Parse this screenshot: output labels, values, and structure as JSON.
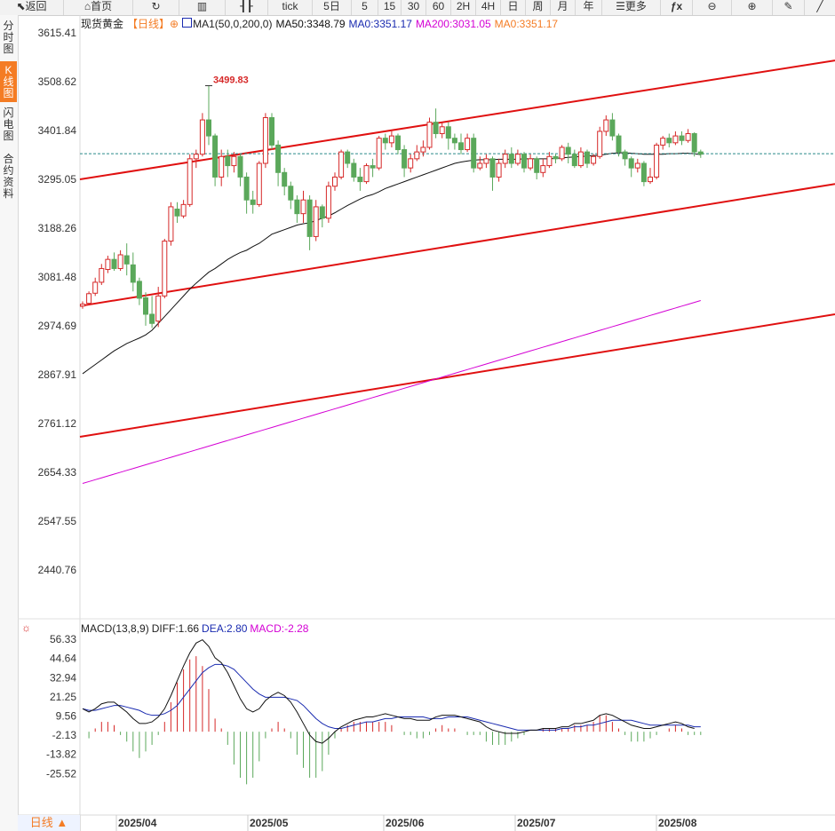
{
  "toolbar": {
    "back": "返回",
    "home": "首页",
    "periods": [
      "tick",
      "5日",
      "5",
      "15",
      "30",
      "60",
      "2H",
      "4H",
      "日",
      "周",
      "月",
      "年"
    ],
    "more": "更多"
  },
  "sidebar": [
    {
      "label": "分时图",
      "active": false
    },
    {
      "label": "K线图",
      "active": true
    },
    {
      "label": "闪电图",
      "active": false
    },
    {
      "label": "合约资料",
      "active": false
    }
  ],
  "legend": {
    "symbol": "现货黄金",
    "period": "【日线】",
    "ma_label": "MA1(50,0,200,0)",
    "ma50": "MA50:3348.79",
    "ma0a": "MA0:3351.17",
    "ma200": "MA200:3031.05",
    "ma0b": "MA0:3351.17"
  },
  "macd_legend": {
    "name": "MACD(13,8,9)",
    "diff": "DIFF:1.66",
    "dea": "DEA:2.80",
    "macd": "MACD:-2.28"
  },
  "bottom_tab": "日线 ▲",
  "colors": {
    "up": "#d62828",
    "down": "#5ba85b",
    "trend": "#e01010",
    "ma50": "#111111",
    "ma200": "#d400d4",
    "ma0": "#f47c24",
    "diff": "#111111",
    "dea": "#1a2bb0",
    "price_line": "#2a8a8a"
  },
  "chart_data": {
    "type": "candlestick",
    "price_axis": {
      "ticks": [
        "3615.41",
        "3508.62",
        "3401.84",
        "3295.05",
        "3188.26",
        "3081.48",
        "2974.69",
        "2867.91",
        "2761.12",
        "2654.33",
        "2547.55",
        "2440.76"
      ],
      "ylim": [
        2440.76,
        3615.41
      ]
    },
    "x_ticks": [
      "2025/04",
      "2025/05",
      "2025/06",
      "2025/07",
      "2025/08"
    ],
    "high_annotation": "3499.83",
    "candles": [
      [
        3018,
        3022,
        3012,
        3028
      ],
      [
        3024,
        3045,
        3020,
        3050
      ],
      [
        3046,
        3070,
        3040,
        3080
      ],
      [
        3070,
        3100,
        3064,
        3110
      ],
      [
        3098,
        3120,
        3090,
        3128
      ],
      [
        3120,
        3100,
        3095,
        3135
      ],
      [
        3100,
        3130,
        3095,
        3140
      ],
      [
        3128,
        3110,
        3085,
        3155
      ],
      [
        3108,
        3070,
        3050,
        3135
      ],
      [
        3072,
        3035,
        3020,
        3080
      ],
      [
        3036,
        3000,
        2975,
        3048
      ],
      [
        3000,
        2980,
        2970,
        3040
      ],
      [
        2985,
        3040,
        2972,
        3060
      ],
      [
        3040,
        3160,
        3035,
        3165
      ],
      [
        3160,
        3235,
        3150,
        3245
      ],
      [
        3230,
        3215,
        3200,
        3245
      ],
      [
        3215,
        3240,
        3210,
        3250
      ],
      [
        3240,
        3340,
        3235,
        3350
      ],
      [
        3340,
        3350,
        3320,
        3360
      ],
      [
        3350,
        3425,
        3345,
        3440
      ],
      [
        3425,
        3390,
        3370,
        3499.83
      ],
      [
        3390,
        3300,
        3280,
        3395
      ],
      [
        3300,
        3345,
        3280,
        3360
      ],
      [
        3345,
        3325,
        3300,
        3360
      ],
      [
        3325,
        3345,
        3310,
        3355
      ],
      [
        3345,
        3300,
        3280,
        3350
      ],
      [
        3300,
        3250,
        3220,
        3310
      ],
      [
        3250,
        3240,
        3220,
        3270
      ],
      [
        3240,
        3330,
        3235,
        3335
      ],
      [
        3330,
        3430,
        3320,
        3440
      ],
      [
        3430,
        3370,
        3360,
        3440
      ],
      [
        3370,
        3310,
        3280,
        3380
      ],
      [
        3310,
        3280,
        3260,
        3320
      ],
      [
        3280,
        3250,
        3230,
        3290
      ],
      [
        3250,
        3220,
        3200,
        3260
      ],
      [
        3220,
        3250,
        3200,
        3270
      ],
      [
        3250,
        3170,
        3140,
        3260
      ],
      [
        3170,
        3235,
        3160,
        3250
      ],
      [
        3235,
        3210,
        3190,
        3240
      ],
      [
        3210,
        3280,
        3200,
        3290
      ],
      [
        3280,
        3300,
        3270,
        3310
      ],
      [
        3300,
        3355,
        3295,
        3360
      ],
      [
        3355,
        3330,
        3320,
        3360
      ],
      [
        3330,
        3300,
        3290,
        3340
      ],
      [
        3300,
        3290,
        3270,
        3320
      ],
      [
        3290,
        3325,
        3285,
        3330
      ],
      [
        3325,
        3320,
        3300,
        3340
      ],
      [
        3320,
        3385,
        3315,
        3390
      ],
      [
        3385,
        3375,
        3360,
        3395
      ],
      [
        3375,
        3390,
        3365,
        3400
      ],
      [
        3390,
        3360,
        3350,
        3395
      ],
      [
        3360,
        3320,
        3300,
        3370
      ],
      [
        3320,
        3340,
        3310,
        3350
      ],
      [
        3340,
        3355,
        3335,
        3370
      ],
      [
        3355,
        3365,
        3345,
        3380
      ],
      [
        3365,
        3420,
        3360,
        3430
      ],
      [
        3420,
        3395,
        3385,
        3450
      ],
      [
        3395,
        3410,
        3385,
        3420
      ],
      [
        3410,
        3385,
        3360,
        3420
      ],
      [
        3385,
        3375,
        3360,
        3395
      ],
      [
        3375,
        3360,
        3350,
        3395
      ],
      [
        3360,
        3385,
        3355,
        3395
      ],
      [
        3385,
        3320,
        3310,
        3395
      ],
      [
        3320,
        3330,
        3315,
        3345
      ],
      [
        3330,
        3340,
        3320,
        3350
      ],
      [
        3340,
        3300,
        3270,
        3345
      ],
      [
        3300,
        3330,
        3290,
        3340
      ],
      [
        3330,
        3350,
        3320,
        3360
      ],
      [
        3350,
        3330,
        3320,
        3365
      ],
      [
        3330,
        3350,
        3325,
        3360
      ],
      [
        3350,
        3320,
        3310,
        3355
      ],
      [
        3320,
        3340,
        3315,
        3350
      ],
      [
        3340,
        3310,
        3295,
        3345
      ],
      [
        3310,
        3325,
        3300,
        3340
      ],
      [
        3325,
        3345,
        3320,
        3355
      ],
      [
        3345,
        3340,
        3330,
        3350
      ],
      [
        3340,
        3365,
        3335,
        3370
      ],
      [
        3365,
        3350,
        3330,
        3375
      ],
      [
        3350,
        3325,
        3320,
        3360
      ],
      [
        3325,
        3355,
        3320,
        3365
      ],
      [
        3355,
        3330,
        3320,
        3360
      ],
      [
        3330,
        3345,
        3325,
        3350
      ],
      [
        3345,
        3400,
        3340,
        3410
      ],
      [
        3400,
        3425,
        3390,
        3435
      ],
      [
        3425,
        3390,
        3380,
        3440
      ],
      [
        3390,
        3355,
        3345,
        3395
      ],
      [
        3355,
        3340,
        3325,
        3360
      ],
      [
        3340,
        3320,
        3300,
        3345
      ],
      [
        3320,
        3330,
        3310,
        3340
      ],
      [
        3330,
        3290,
        3280,
        3335
      ],
      [
        3290,
        3300,
        3285,
        3320
      ],
      [
        3300,
        3370,
        3295,
        3375
      ],
      [
        3370,
        3385,
        3360,
        3390
      ],
      [
        3385,
        3375,
        3365,
        3395
      ],
      [
        3375,
        3390,
        3370,
        3400
      ],
      [
        3390,
        3380,
        3370,
        3400
      ],
      [
        3380,
        3395,
        3375,
        3405
      ],
      [
        3395,
        3355,
        3345,
        3398
      ],
      [
        3355,
        3350,
        3342,
        3360
      ]
    ],
    "ma50": [
      2870,
      2880,
      2890,
      2900,
      2910,
      2920,
      2928,
      2936,
      2942,
      2948,
      2955,
      2965,
      2980,
      2995,
      3010,
      3025,
      3040,
      3055,
      3068,
      3080,
      3092,
      3100,
      3110,
      3120,
      3128,
      3135,
      3140,
      3148,
      3155,
      3165,
      3175,
      3180,
      3185,
      3190,
      3195,
      3198,
      3200,
      3205,
      3210,
      3215,
      3222,
      3230,
      3238,
      3245,
      3252,
      3258,
      3262,
      3268,
      3275,
      3280,
      3285,
      3290,
      3295,
      3300,
      3305,
      3310,
      3315,
      3320,
      3325,
      3330,
      3333,
      3335,
      3337,
      3338,
      3338,
      3338,
      3339,
      3339,
      3339,
      3339,
      3340,
      3340,
      3340,
      3340,
      3340,
      3341,
      3342,
      3343,
      3344,
      3345,
      3346,
      3347,
      3348,
      3350,
      3352,
      3353,
      3353,
      3352,
      3351,
      3350,
      3350,
      3350,
      3350,
      3351,
      3351,
      3352,
      3352,
      3351,
      3349
    ],
    "ma200": {
      "start": 2630,
      "end": 3030
    },
    "current_price": 3351.17,
    "trend_lines": [
      {
        "x0": 0,
        "y0": 3295,
        "x1": 120,
        "y1": 3555
      },
      {
        "x0": 0,
        "y0": 3018,
        "x1": 120,
        "y1": 3285
      },
      {
        "x0": 0,
        "y0": 2732,
        "x1": 120,
        "y1": 3000
      }
    ],
    "macd": {
      "yticks": [
        "56.33",
        "44.64",
        "32.94",
        "21.25",
        "9.56",
        "-2.13",
        "-13.82",
        "-25.52"
      ],
      "ylim": [
        -37.21,
        56.33
      ],
      "diff": [
        14,
        12,
        14,
        17,
        18,
        18,
        15,
        12,
        8,
        5,
        5,
        6,
        9,
        14,
        22,
        31,
        40,
        48,
        54,
        56,
        52,
        45,
        42,
        36,
        28,
        20,
        14,
        12,
        14,
        19,
        22,
        24,
        22,
        18,
        12,
        5,
        -2,
        -6,
        -7,
        -4,
        0,
        3,
        5,
        7,
        8,
        9,
        9,
        10,
        11,
        10,
        9,
        8,
        8,
        7,
        7,
        7,
        9,
        10,
        10,
        10,
        9,
        8,
        7,
        6,
        3,
        1,
        0,
        -1,
        -1,
        -1,
        0,
        1,
        1,
        2,
        2,
        2,
        3,
        3,
        5,
        5,
        6,
        7,
        10,
        11,
        10,
        8,
        6,
        4,
        3,
        2,
        2,
        3,
        4,
        5,
        6,
        5,
        3,
        2
      ],
      "dea": [
        14,
        13,
        13,
        14,
        15,
        16,
        16,
        15,
        14,
        13,
        11,
        10,
        10,
        11,
        13,
        16,
        21,
        26,
        31,
        36,
        39,
        41,
        41,
        40,
        38,
        34,
        30,
        26,
        23,
        21,
        21,
        21,
        21,
        20,
        19,
        16,
        12,
        8,
        5,
        3,
        2,
        2,
        3,
        4,
        5,
        6,
        6,
        7,
        8,
        8,
        9,
        9,
        9,
        9,
        9,
        8,
        8,
        8,
        9,
        9,
        9,
        9,
        8,
        7,
        6,
        5,
        4,
        3,
        2,
        1,
        1,
        1,
        1,
        1,
        1,
        1,
        2,
        2,
        3,
        3,
        4,
        4,
        5,
        6,
        7,
        7,
        7,
        7,
        6,
        5,
        4,
        4,
        4,
        4,
        4,
        4,
        4,
        3,
        3
      ],
      "macd_bars": [
        0,
        -2,
        1,
        3,
        3,
        2,
        -1,
        -3,
        -6,
        -8,
        -6,
        -4,
        -1,
        3,
        9,
        15,
        19,
        22,
        23,
        20,
        13,
        4,
        1,
        -4,
        -10,
        -14,
        -16,
        -14,
        -9,
        -2,
        1,
        3,
        1,
        -2,
        -7,
        -11,
        -14,
        -14,
        -12,
        -7,
        -2,
        1,
        2,
        3,
        3,
        3,
        3,
        3,
        3,
        2,
        0,
        -1,
        -1,
        -2,
        -2,
        -1,
        1,
        2,
        1,
        1,
        0,
        -1,
        -1,
        -1,
        -3,
        -4,
        -4,
        -4,
        -3,
        -2,
        -1,
        0,
        0,
        1,
        1,
        1,
        1,
        1,
        2,
        2,
        2,
        3,
        5,
        5,
        3,
        1,
        -1,
        -3,
        -3,
        -3,
        -2,
        -1,
        0,
        1,
        2,
        1,
        -1,
        -1,
        -1
      ]
    }
  }
}
